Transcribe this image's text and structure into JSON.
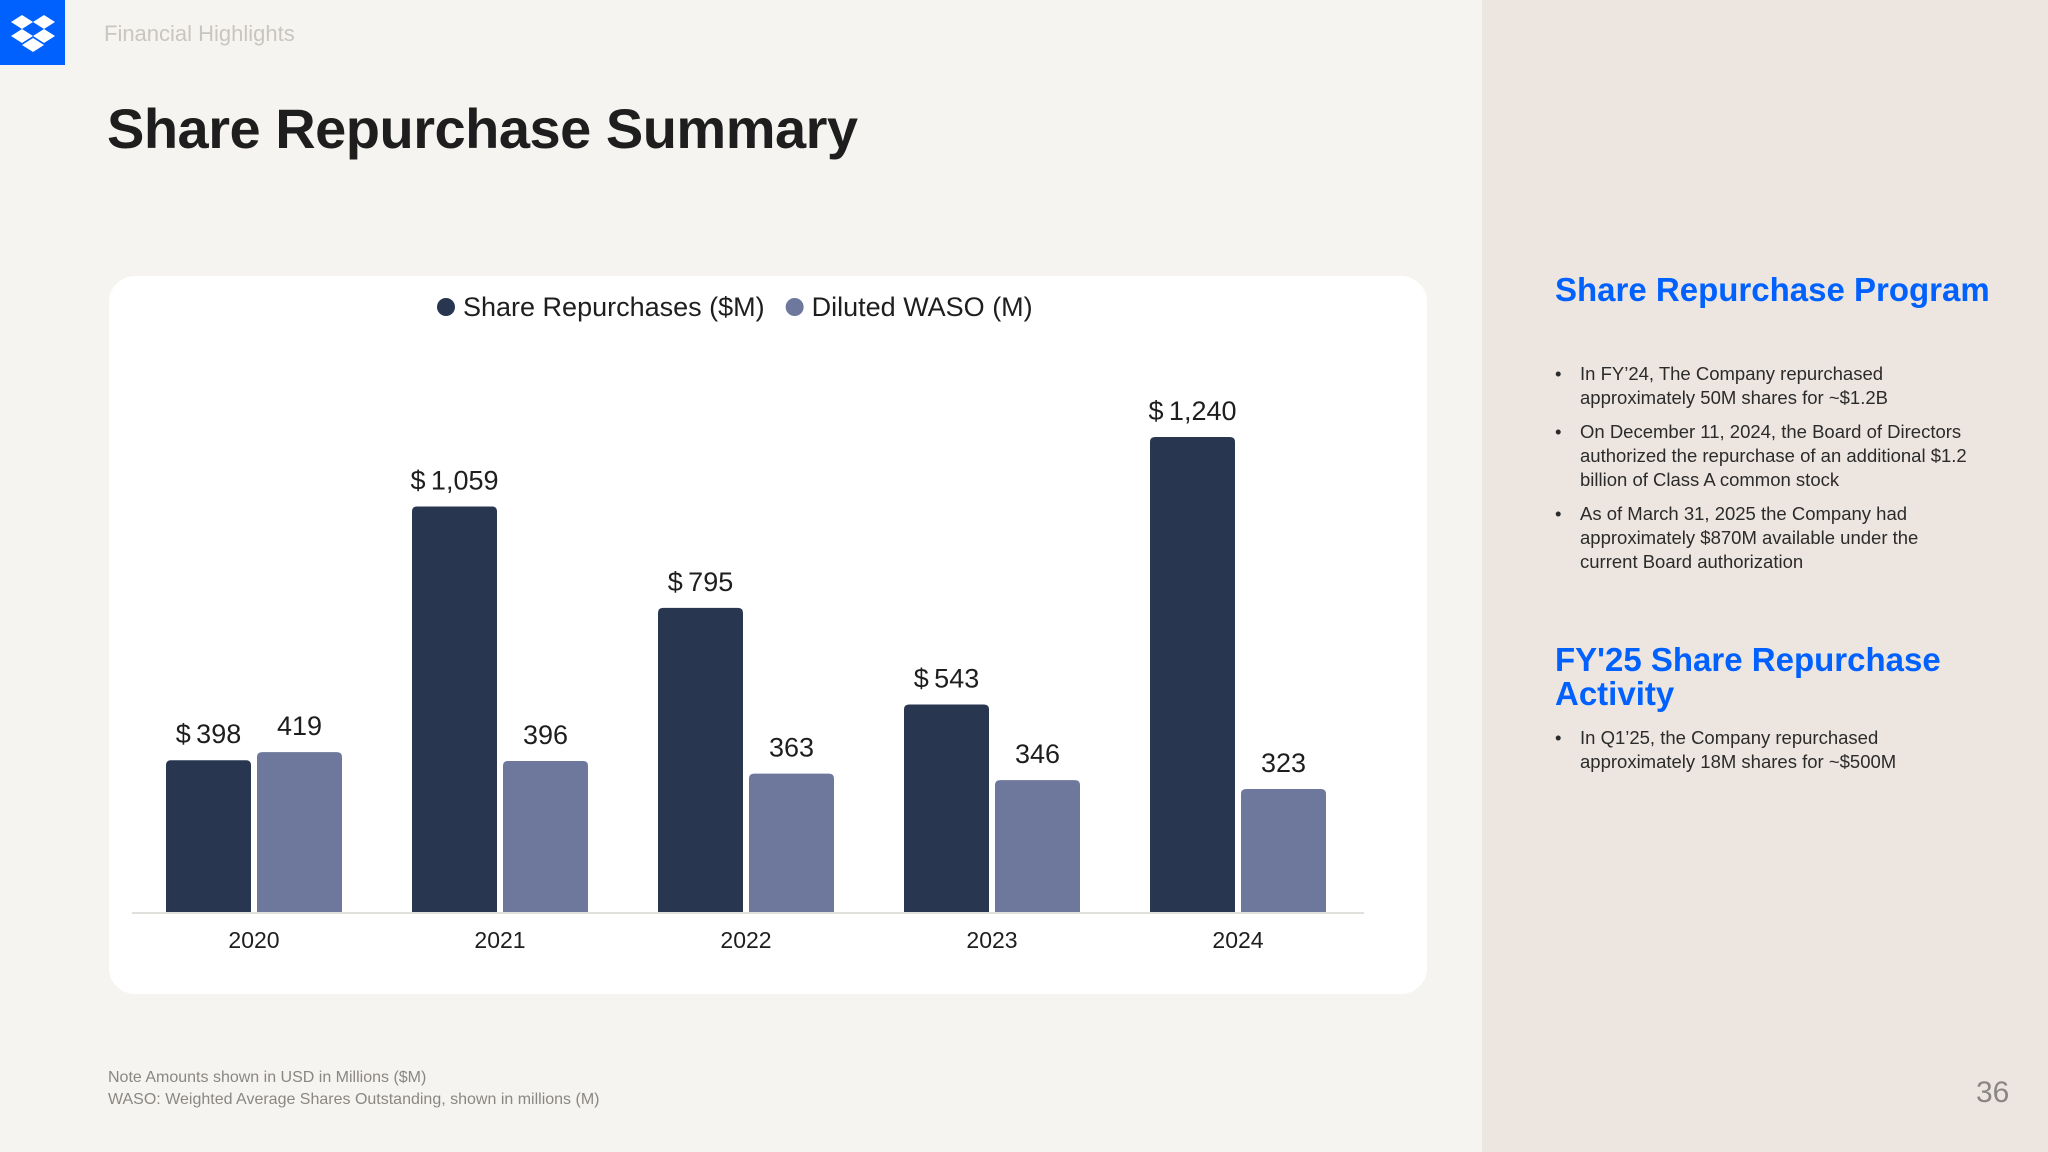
{
  "header": {
    "section_label": "Financial Highlights",
    "title": "Share Repurchase Summary"
  },
  "logo": {
    "icon": "dropbox-logo-icon",
    "color": "#0061fe"
  },
  "sidebar": {
    "program_heading": "Share Repurchase Program",
    "program_bullets": [
      "In FY’24, The Company repurchased approximately 50M shares for ~$1.2B",
      "On December 11, 2024, the Board of Directors authorized the repurchase of an additional $1.2 billion of Class A common stock",
      "As of March 31, 2025 the Company had approximately $870M available under the current Board authorization"
    ],
    "activity_heading": "FY'25 Share Repurchase Activity",
    "activity_bullets": [
      "In Q1’25, the Company repurchased approximately 18M shares for ~$500M"
    ],
    "bullet_char": "•"
  },
  "chart_data": {
    "type": "bar",
    "categories": [
      "2020",
      "2021",
      "2022",
      "2023",
      "2024"
    ],
    "series": [
      {
        "name": "Share Repurchases ($M)",
        "values": [
          398,
          1059,
          795,
          543,
          1240
        ],
        "color": "#283650",
        "label_prefix": "$",
        "label_values": [
          "398",
          "1,059",
          "795",
          "543",
          "1,240"
        ]
      },
      {
        "name": "Diluted WASO (M)",
        "values": [
          419,
          396,
          363,
          346,
          323
        ],
        "color": "#6e779c",
        "label_prefix": "",
        "label_values": [
          "419",
          "396",
          "363",
          "346",
          "323"
        ]
      }
    ],
    "legend_position": "top-center",
    "grid": false,
    "ylim": [
      0,
      1240
    ]
  },
  "footer": {
    "note_line1": "Note Amounts shown in USD in Millions ($M)",
    "note_line2": "WASO: Weighted Average Shares Outstanding, shown in millions (M)",
    "page_number": "36"
  }
}
